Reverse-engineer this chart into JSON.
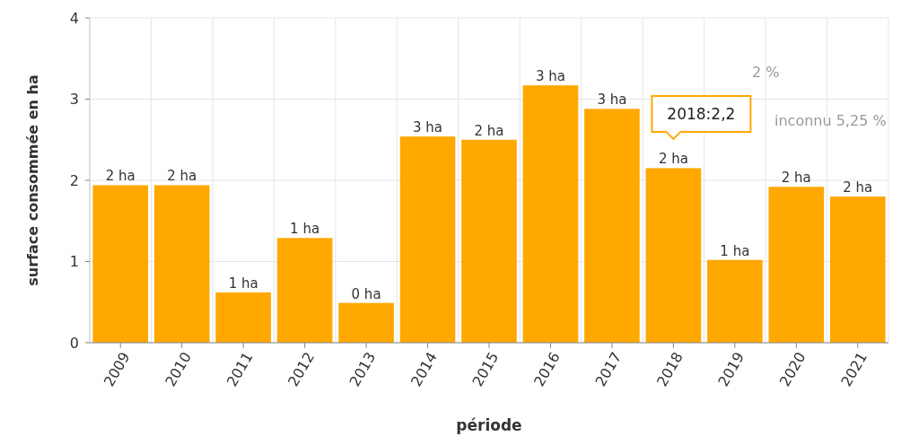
{
  "chart_data": {
    "type": "bar",
    "xlabel": "période",
    "ylabel": "surface consommée en ha",
    "categories": [
      "2009",
      "2010",
      "2011",
      "2012",
      "2013",
      "2014",
      "2015",
      "2016",
      "2017",
      "2018",
      "2019",
      "2020",
      "2021"
    ],
    "values": [
      1.94,
      1.94,
      0.62,
      1.29,
      0.49,
      2.54,
      2.5,
      3.17,
      2.88,
      2.15,
      1.02,
      1.92,
      1.8
    ],
    "value_labels": [
      "2 ha",
      "2 ha",
      "1 ha",
      "1 ha",
      "0 ha",
      "3 ha",
      "2 ha",
      "3 ha",
      "3 ha",
      "2 ha",
      "1 ha",
      "2 ha",
      "2 ha"
    ],
    "color": "#ffa800",
    "ylim": [
      0,
      4
    ],
    "yticks": [
      0,
      1,
      2,
      3,
      4
    ],
    "grid": true,
    "annotations": [
      {
        "text": "2018:2,2",
        "x": "2018",
        "y": 2.2
      },
      "2 %",
      "inconnu 5,25 %"
    ]
  }
}
